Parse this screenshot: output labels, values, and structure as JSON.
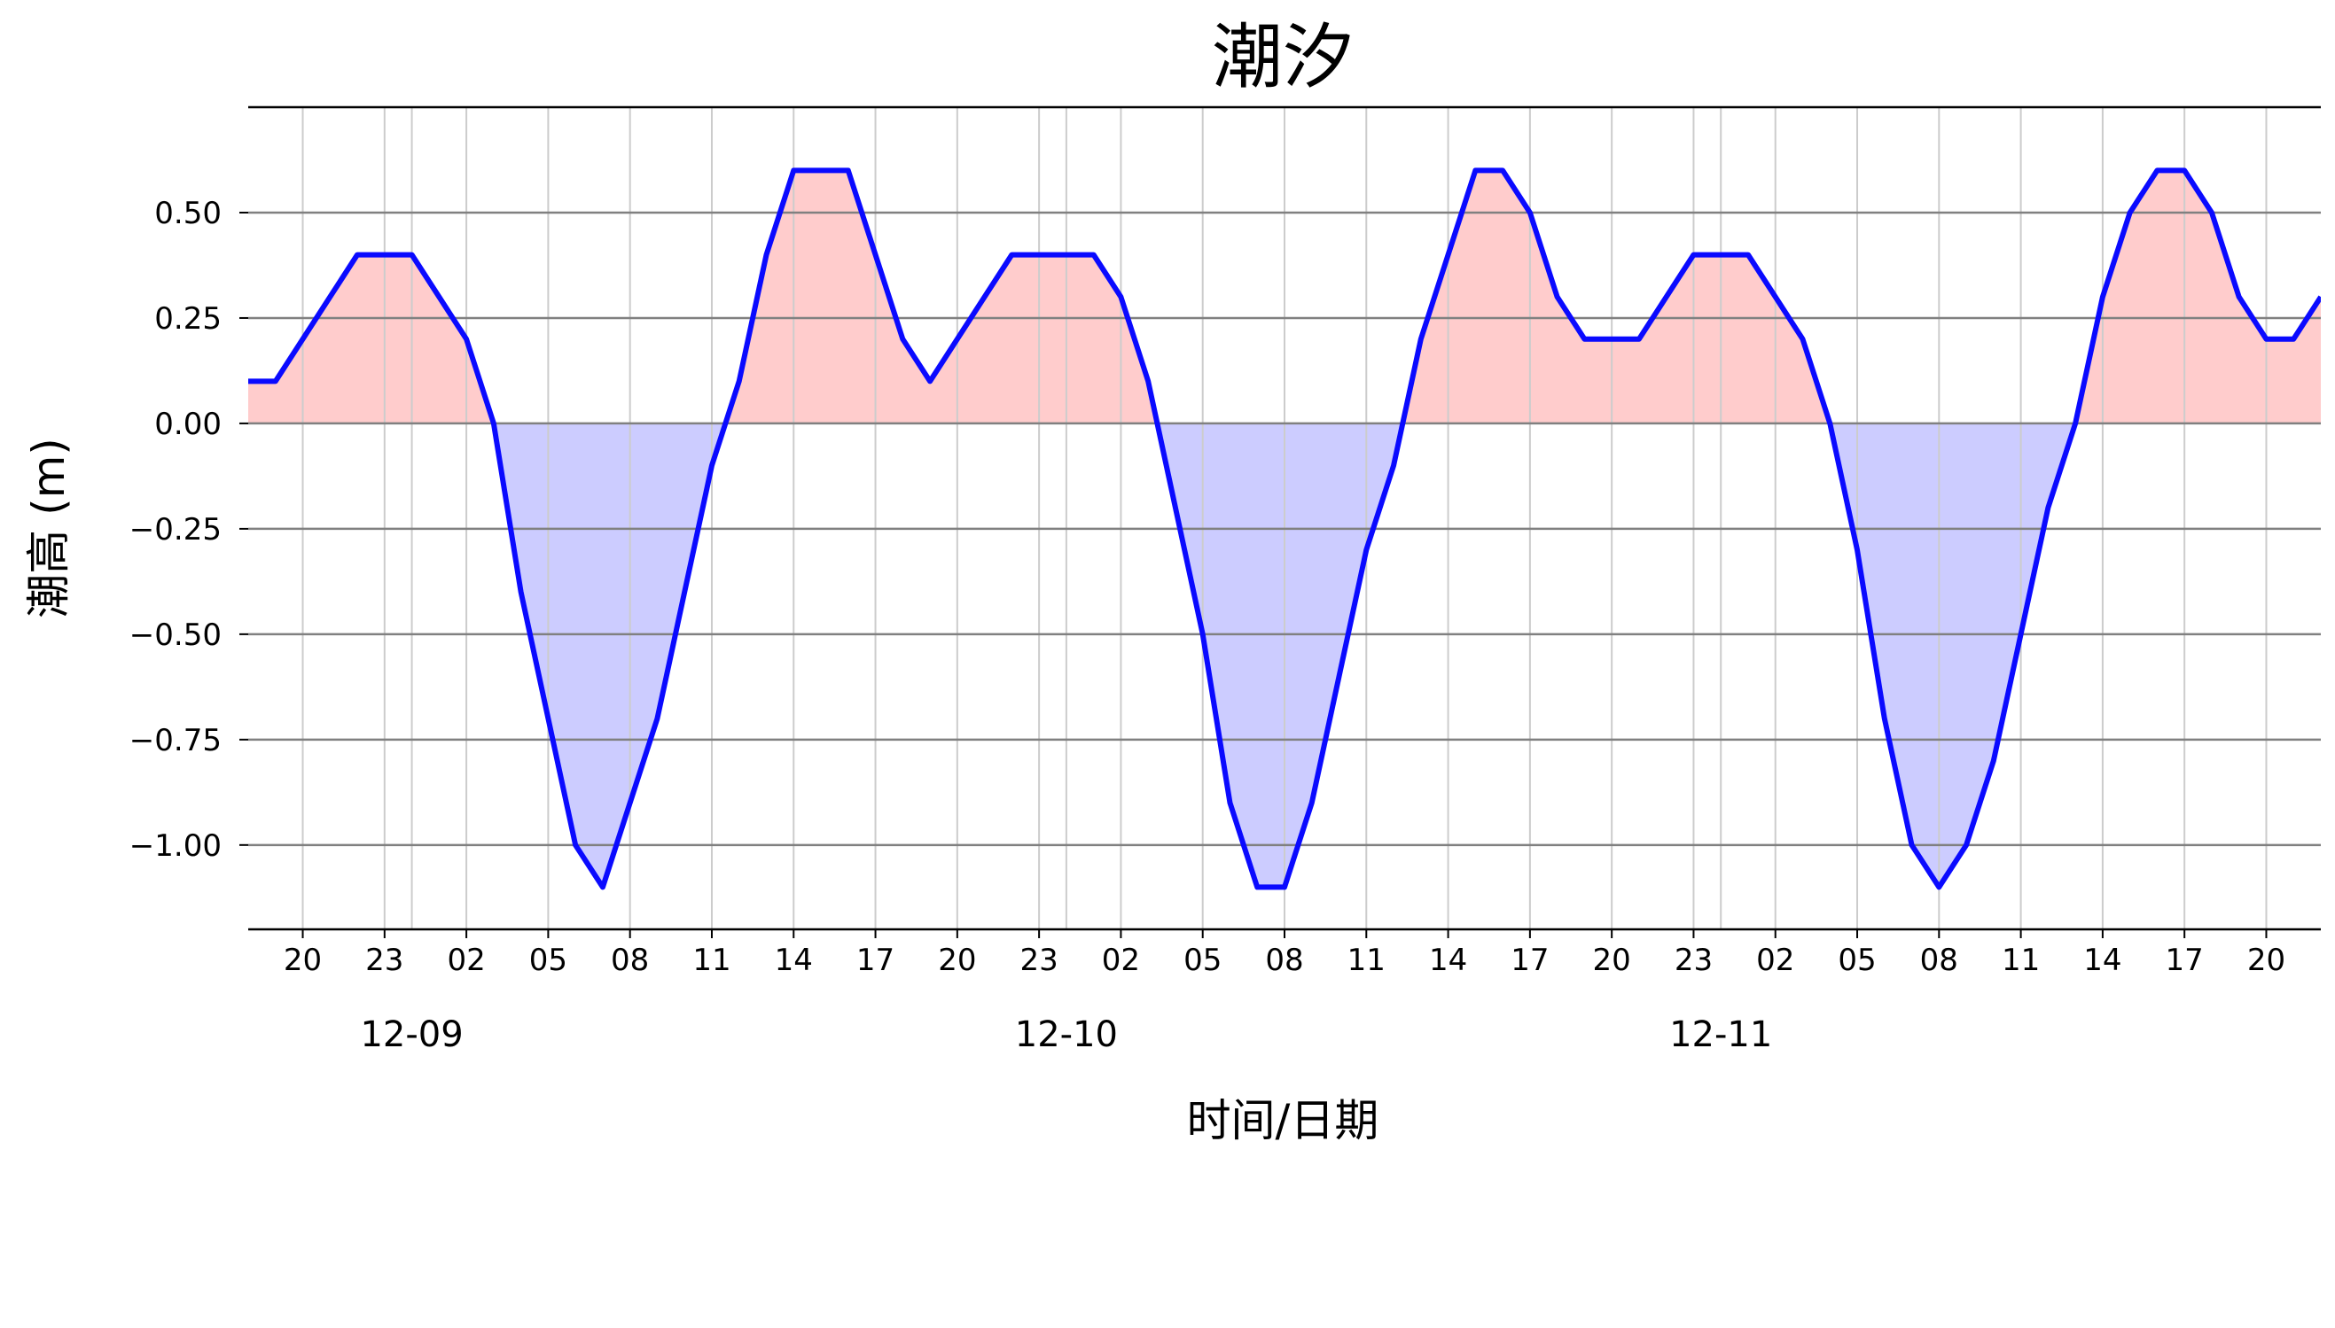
{
  "chart_data": {
    "type": "area",
    "title": "潮汐",
    "xlabel": "时间/日期",
    "ylabel": "潮高 (m)",
    "xlim_hours": [
      -3,
      73
    ],
    "ylim": [
      -1.2,
      0.75
    ],
    "yticks": [
      0.5,
      0.25,
      0.0,
      -0.25,
      -0.5,
      -0.75,
      -1.0
    ],
    "ytick_labels": [
      "0.50",
      "0.25",
      "0.00",
      "−0.25",
      "−0.50",
      "−0.75",
      "−1.00"
    ],
    "hour_ticks": [
      -1,
      2,
      5,
      8,
      11,
      14,
      17,
      20,
      23,
      26,
      29,
      32,
      35,
      38,
      41,
      44,
      47,
      50,
      53,
      56,
      59,
      62,
      65,
      68,
      71
    ],
    "hour_tick_labels": [
      "20",
      "23",
      "02",
      "05",
      "08",
      "11",
      "14",
      "17",
      "20",
      "23",
      "02",
      "05",
      "08",
      "11",
      "14",
      "17",
      "20",
      "23",
      "02",
      "05",
      "08",
      "11",
      "14",
      "17",
      "20"
    ],
    "date_ticks": [
      3,
      27,
      51
    ],
    "date_labels": [
      "12-09",
      "12-10",
      "12-11"
    ],
    "grid": true,
    "colors": {
      "line": "#0a0aff",
      "positive_fill": "#ffcccc",
      "negative_fill": "#ccccff",
      "hgrid": "#808080",
      "vgrid": "#cccccc"
    },
    "x": [
      -3,
      -2,
      -1,
      0,
      1,
      2,
      3,
      4,
      5,
      6,
      7,
      8,
      9,
      10,
      11,
      12,
      13,
      14,
      15,
      16,
      17,
      18,
      19,
      20,
      21,
      22,
      23,
      24,
      25,
      26,
      27,
      28,
      29,
      30,
      31,
      32,
      33,
      34,
      35,
      36,
      37,
      38,
      39,
      40,
      41,
      42,
      43,
      44,
      45,
      46,
      47,
      48,
      49,
      50,
      51,
      52,
      53,
      54,
      55,
      56,
      57,
      58,
      59,
      60,
      61,
      62,
      63,
      64,
      65,
      66,
      67,
      68,
      69,
      70,
      71,
      72,
      73
    ],
    "y": [
      0.1,
      0.1,
      0.2,
      0.3,
      0.4,
      0.4,
      0.4,
      0.3,
      0.2,
      0.0,
      -0.4,
      -0.7,
      -1.0,
      -1.1,
      -0.9,
      -0.7,
      -0.4,
      -0.1,
      0.1,
      0.4,
      0.6,
      0.6,
      0.6,
      0.4,
      0.2,
      0.1,
      0.2,
      0.3,
      0.4,
      0.4,
      0.4,
      0.4,
      0.3,
      0.1,
      -0.2,
      -0.5,
      -0.9,
      -1.1,
      -1.1,
      -0.9,
      -0.6,
      -0.3,
      -0.1,
      0.2,
      0.4,
      0.6,
      0.6,
      0.5,
      0.3,
      0.2,
      0.2,
      0.2,
      0.3,
      0.4,
      0.4,
      0.4,
      0.3,
      0.2,
      0.0,
      -0.3,
      -0.7,
      -1.0,
      -1.1,
      -1.0,
      -0.8,
      -0.5,
      -0.2,
      0.0,
      0.3,
      0.5,
      0.6,
      0.6,
      0.5,
      0.3,
      0.2,
      0.2,
      0.3
    ]
  }
}
